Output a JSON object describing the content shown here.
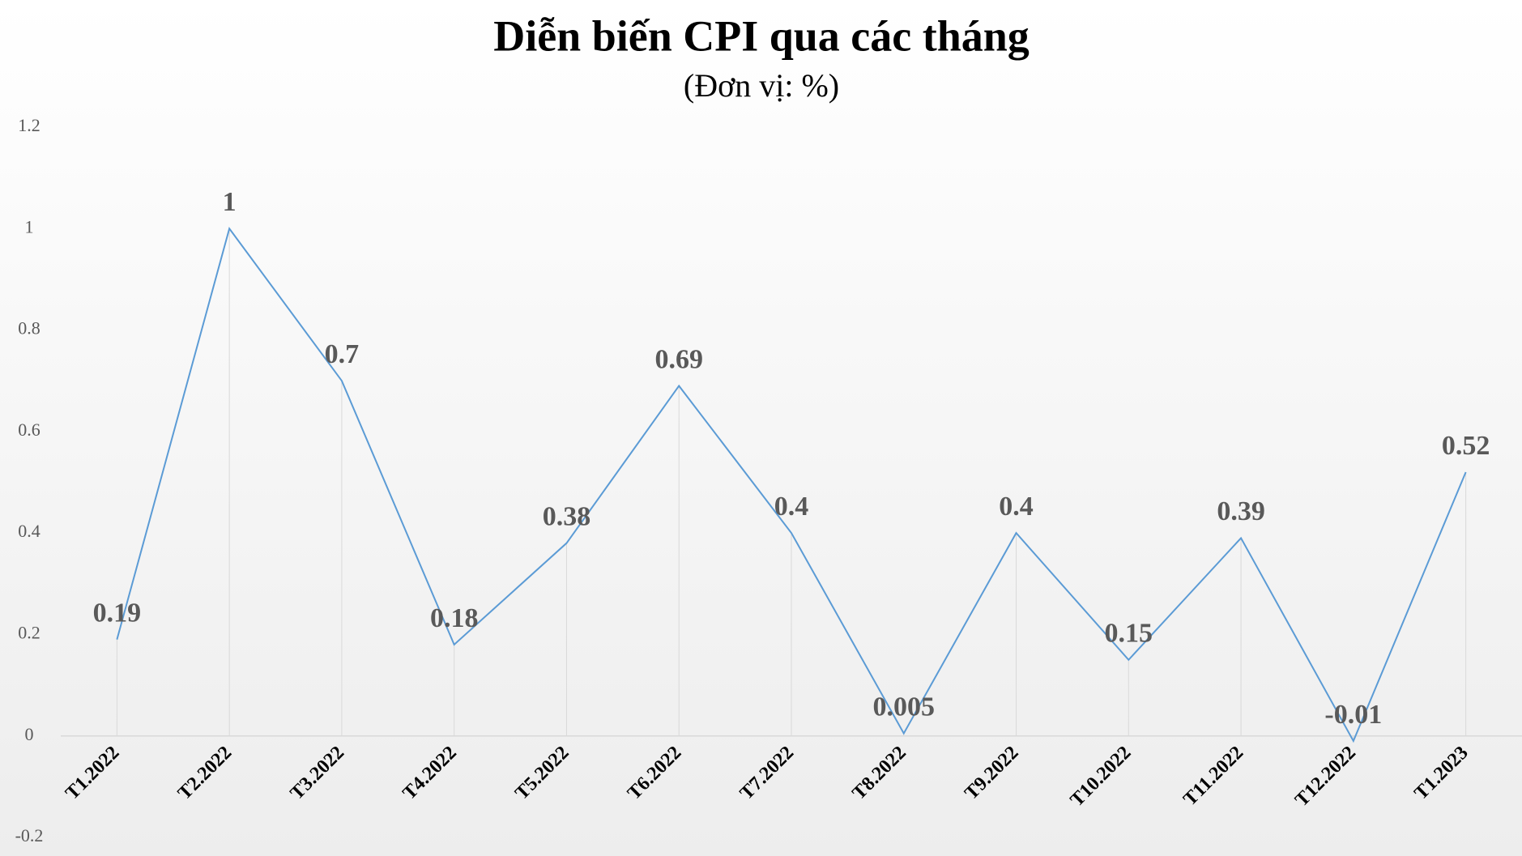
{
  "chart_data": {
    "type": "line",
    "title": "Diễn biến CPI qua các tháng",
    "subtitle": "(Đơn vị: %)",
    "categories": [
      "T1.2022",
      "T2.2022",
      "T3.2022",
      "T4.2022",
      "T5.2022",
      "T6.2022",
      "T7.2022",
      "T8.2022",
      "T9.2022",
      "T10.2022",
      "T11.2022",
      "T12.2022",
      "T1.2023"
    ],
    "values": [
      0.19,
      1,
      0.7,
      0.18,
      0.38,
      0.69,
      0.4,
      0.005,
      0.4,
      0.15,
      0.39,
      -0.01,
      0.52
    ],
    "color": "#5b9bd5",
    "ylim": [
      -0.2,
      1.2
    ],
    "yticks": [
      -0.2,
      0,
      0.2,
      0.4,
      0.6,
      0.8,
      1,
      1.2
    ],
    "grid": false
  }
}
